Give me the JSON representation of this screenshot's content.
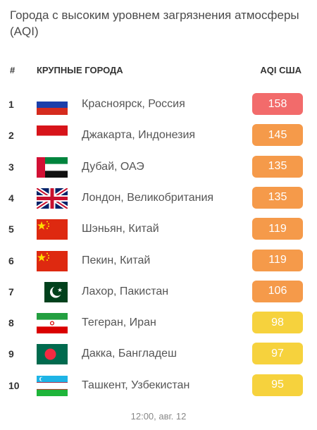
{
  "title": "Города с высоким уровнем загрязнения атмосферы (AQI)",
  "header": {
    "rank": "#",
    "city": "КРУПНЫЕ ГОРОДА",
    "aqi": "AQI США"
  },
  "colors": {
    "red": "#f26b6b",
    "orange": "#f59a4a",
    "yellow": "#f6d23d"
  },
  "rows": [
    {
      "rank": "1",
      "flag": "russia-flag-icon",
      "city": "Красноярск, Россия",
      "aqi": "158",
      "level": "red"
    },
    {
      "rank": "2",
      "flag": "indonesia-flag-icon",
      "city": "Джакарта, Индонезия",
      "aqi": "145",
      "level": "orange"
    },
    {
      "rank": "3",
      "flag": "uae-flag-icon",
      "city": "Дубай, ОАЭ",
      "aqi": "135",
      "level": "orange"
    },
    {
      "rank": "4",
      "flag": "uk-flag-icon",
      "city": "Лондон, Великобритания",
      "aqi": "135",
      "level": "orange"
    },
    {
      "rank": "5",
      "flag": "china-flag-icon",
      "city": "Шэньян, Китай",
      "aqi": "119",
      "level": "orange"
    },
    {
      "rank": "6",
      "flag": "china-flag-icon",
      "city": "Пекин, Китай",
      "aqi": "119",
      "level": "orange"
    },
    {
      "rank": "7",
      "flag": "pakistan-flag-icon",
      "city": "Лахор, Пакистан",
      "aqi": "106",
      "level": "orange"
    },
    {
      "rank": "8",
      "flag": "iran-flag-icon",
      "city": "Тегеран, Иран",
      "aqi": "98",
      "level": "yellow"
    },
    {
      "rank": "9",
      "flag": "bangladesh-flag-icon",
      "city": "Дакка, Бангладеш",
      "aqi": "97",
      "level": "yellow"
    },
    {
      "rank": "10",
      "flag": "uzbekistan-flag-icon",
      "city": "Ташкент, Узбекистан",
      "aqi": "95",
      "level": "yellow"
    }
  ],
  "timestamp": "12:00, авг. 12"
}
